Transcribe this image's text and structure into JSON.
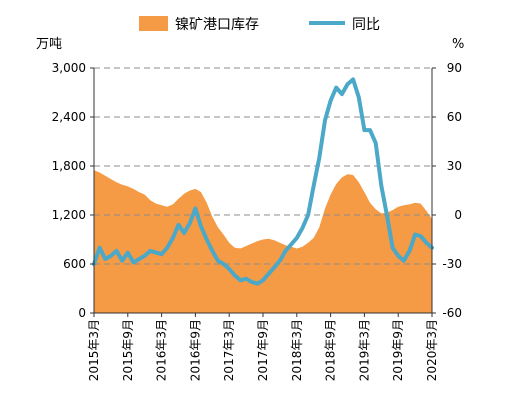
{
  "chart_data": {
    "type": "line",
    "title": "",
    "left_unit": "万吨",
    "right_unit": "%",
    "legend_placement": "top",
    "legend": [
      {
        "label": "镍矿港口库存",
        "kind": "area",
        "color": "#F59A45"
      },
      {
        "label": "同比",
        "kind": "line",
        "color": "#4BA8C8"
      }
    ],
    "y_left": {
      "min": 0,
      "max": 3000,
      "ticks": [
        0,
        600,
        1200,
        1800,
        2400,
        3000
      ],
      "tick_labels": [
        "0",
        "600",
        "1,200",
        "1,800",
        "2,400",
        "3,000"
      ]
    },
    "y_right": {
      "min": -60,
      "max": 90,
      "ticks": [
        -60,
        -30,
        0,
        30,
        60,
        90
      ],
      "tick_labels": [
        "-60",
        "-30",
        "0",
        "30",
        "60",
        "90"
      ]
    },
    "x_range": [
      "2015-03",
      "2020-03"
    ],
    "x_tick_labels": [
      {
        "date": "2015-03",
        "label": "2015年3月"
      },
      {
        "date": "2015-09",
        "label": "2015年9月"
      },
      {
        "date": "2016-03",
        "label": "2016年3月"
      },
      {
        "date": "2016-09",
        "label": "2016年9月"
      },
      {
        "date": "2017-03",
        "label": "2017年3月"
      },
      {
        "date": "2017-09",
        "label": "2017年9月"
      },
      {
        "date": "2018-03",
        "label": "2018年3月"
      },
      {
        "date": "2018-09",
        "label": "2018年9月"
      },
      {
        "date": "2019-03",
        "label": "2019年3月"
      },
      {
        "date": "2019-09",
        "label": "2019年9月"
      },
      {
        "date": "2020-03",
        "label": "2020年3月"
      }
    ],
    "grid": "horizontal dashed",
    "series": [
      {
        "name": "镍矿港口库存",
        "type": "area",
        "axis": "left",
        "color": "#F59A45",
        "points": [
          [
            "2015-03",
            1750
          ],
          [
            "2015-04",
            1720
          ],
          [
            "2015-05",
            1680
          ],
          [
            "2015-06",
            1640
          ],
          [
            "2015-07",
            1600
          ],
          [
            "2015-08",
            1570
          ],
          [
            "2015-09",
            1550
          ],
          [
            "2015-10",
            1520
          ],
          [
            "2015-11",
            1480
          ],
          [
            "2015-12",
            1450
          ],
          [
            "2016-01",
            1380
          ],
          [
            "2016-02",
            1340
          ],
          [
            "2016-03",
            1320
          ],
          [
            "2016-04",
            1300
          ],
          [
            "2016-05",
            1330
          ],
          [
            "2016-06",
            1400
          ],
          [
            "2016-07",
            1460
          ],
          [
            "2016-08",
            1500
          ],
          [
            "2016-09",
            1520
          ],
          [
            "2016-10",
            1480
          ],
          [
            "2016-11",
            1350
          ],
          [
            "2016-12",
            1180
          ],
          [
            "2017-01",
            1050
          ],
          [
            "2017-02",
            960
          ],
          [
            "2017-03",
            860
          ],
          [
            "2017-04",
            800
          ],
          [
            "2017-05",
            790
          ],
          [
            "2017-06",
            820
          ],
          [
            "2017-07",
            850
          ],
          [
            "2017-08",
            880
          ],
          [
            "2017-09",
            900
          ],
          [
            "2017-10",
            910
          ],
          [
            "2017-11",
            890
          ],
          [
            "2017-12",
            860
          ],
          [
            "2018-01",
            830
          ],
          [
            "2018-02",
            810
          ],
          [
            "2018-03",
            790
          ],
          [
            "2018-04",
            810
          ],
          [
            "2018-05",
            860
          ],
          [
            "2018-06",
            920
          ],
          [
            "2018-07",
            1050
          ],
          [
            "2018-08",
            1280
          ],
          [
            "2018-09",
            1450
          ],
          [
            "2018-10",
            1580
          ],
          [
            "2018-11",
            1660
          ],
          [
            "2018-12",
            1700
          ],
          [
            "2019-01",
            1690
          ],
          [
            "2019-02",
            1600
          ],
          [
            "2019-03",
            1480
          ],
          [
            "2019-04",
            1350
          ],
          [
            "2019-05",
            1270
          ],
          [
            "2019-06",
            1220
          ],
          [
            "2019-07",
            1230
          ],
          [
            "2019-08",
            1260
          ],
          [
            "2019-09",
            1300
          ],
          [
            "2019-10",
            1320
          ],
          [
            "2019-11",
            1330
          ],
          [
            "2019-12",
            1350
          ],
          [
            "2020-01",
            1340
          ],
          [
            "2020-02",
            1250
          ],
          [
            "2020-03",
            1150
          ]
        ]
      },
      {
        "name": "同比",
        "type": "line",
        "axis": "right",
        "color": "#4BA8C8",
        "points": [
          [
            "2015-03",
            -30
          ],
          [
            "2015-04",
            -20
          ],
          [
            "2015-05",
            -27
          ],
          [
            "2015-06",
            -25
          ],
          [
            "2015-07",
            -22
          ],
          [
            "2015-08",
            -28
          ],
          [
            "2015-09",
            -23
          ],
          [
            "2015-10",
            -29
          ],
          [
            "2015-11",
            -27
          ],
          [
            "2015-12",
            -25
          ],
          [
            "2016-01",
            -22
          ],
          [
            "2016-02",
            -23
          ],
          [
            "2016-03",
            -24
          ],
          [
            "2016-04",
            -20
          ],
          [
            "2016-05",
            -14
          ],
          [
            "2016-06",
            -6
          ],
          [
            "2016-07",
            -11
          ],
          [
            "2016-08",
            -5
          ],
          [
            "2016-09",
            4
          ],
          [
            "2016-10",
            -7
          ],
          [
            "2016-11",
            -15
          ],
          [
            "2016-12",
            -22
          ],
          [
            "2017-01",
            -28
          ],
          [
            "2017-02",
            -30
          ],
          [
            "2017-03",
            -33
          ],
          [
            "2017-04",
            -37
          ],
          [
            "2017-05",
            -40
          ],
          [
            "2017-06",
            -39
          ],
          [
            "2017-07",
            -41
          ],
          [
            "2017-08",
            -42
          ],
          [
            "2017-09",
            -40
          ],
          [
            "2017-10",
            -36
          ],
          [
            "2017-11",
            -32
          ],
          [
            "2017-12",
            -28
          ],
          [
            "2018-01",
            -22
          ],
          [
            "2018-02",
            -18
          ],
          [
            "2018-03",
            -14
          ],
          [
            "2018-04",
            -8
          ],
          [
            "2018-05",
            0
          ],
          [
            "2018-06",
            18
          ],
          [
            "2018-07",
            35
          ],
          [
            "2018-08",
            58
          ],
          [
            "2018-09",
            70
          ],
          [
            "2018-10",
            78
          ],
          [
            "2018-11",
            74
          ],
          [
            "2018-12",
            80
          ],
          [
            "2019-01",
            83
          ],
          [
            "2019-02",
            72
          ],
          [
            "2019-03",
            52
          ],
          [
            "2019-04",
            52
          ],
          [
            "2019-05",
            44
          ],
          [
            "2019-06",
            18
          ],
          [
            "2019-07",
            0
          ],
          [
            "2019-08",
            -20
          ],
          [
            "2019-09",
            -25
          ],
          [
            "2019-10",
            -28
          ],
          [
            "2019-11",
            -22
          ],
          [
            "2019-12",
            -12
          ],
          [
            "2020-01",
            -13
          ],
          [
            "2020-02",
            -17
          ],
          [
            "2020-03",
            -20
          ]
        ]
      }
    ]
  }
}
